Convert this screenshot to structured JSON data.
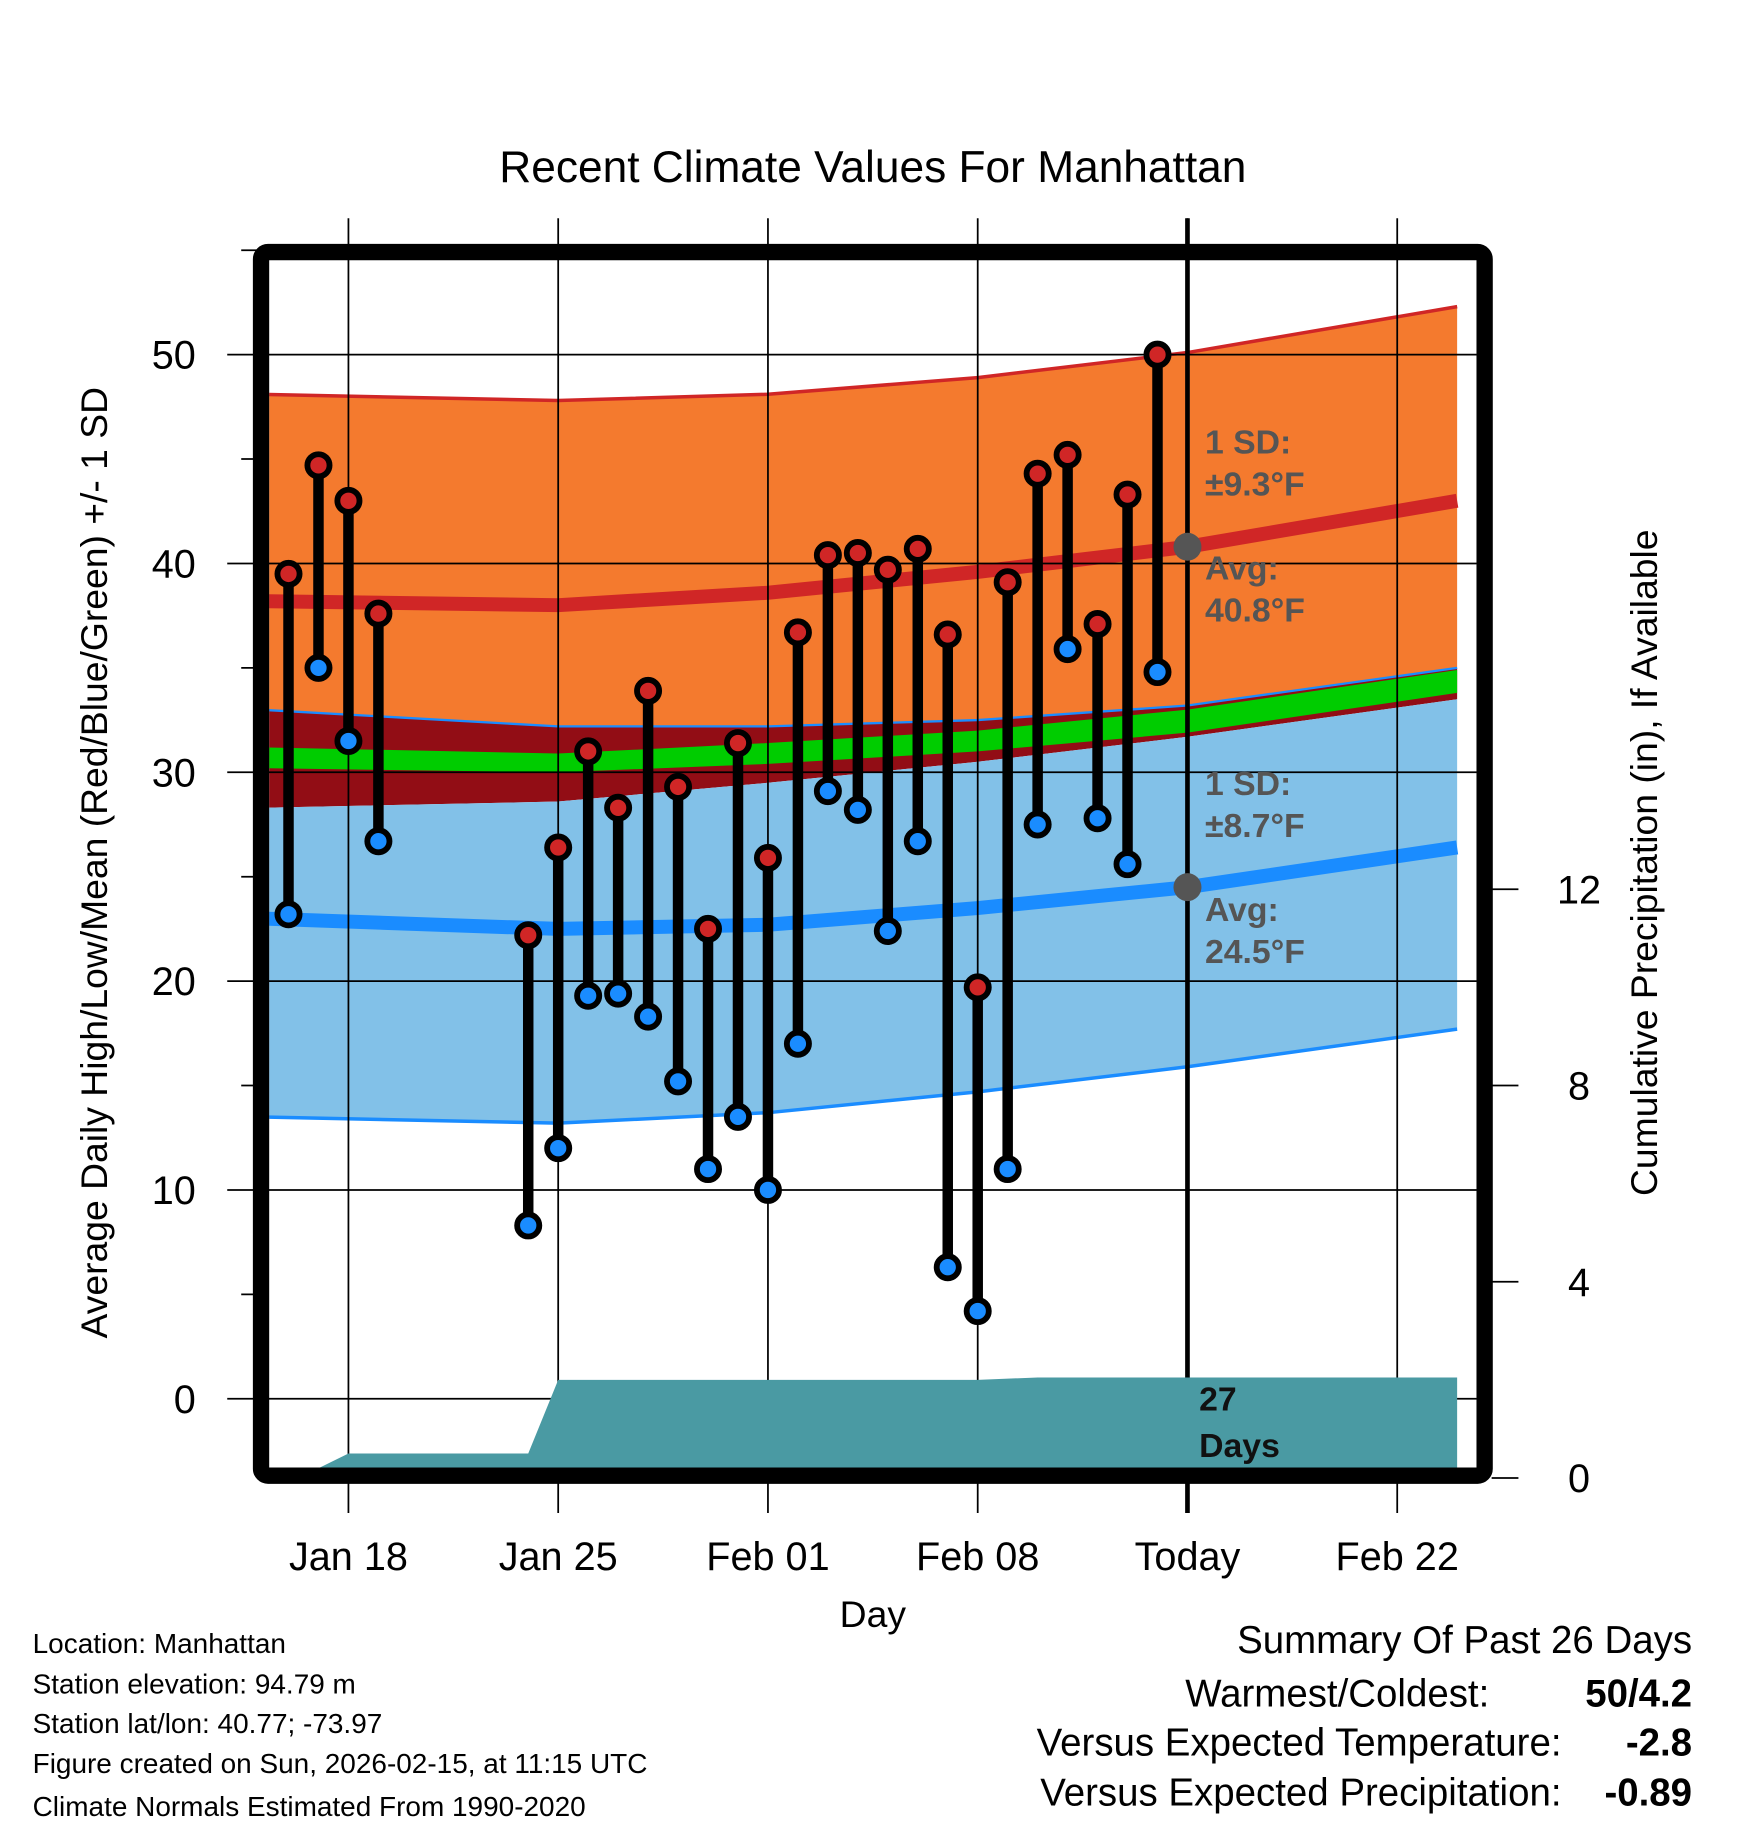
{
  "chart_data": {
    "type": "line",
    "title": "Recent Climate Values For Manhattan",
    "xlabel": "Day",
    "ylabel": "Average Daily High/Low/Mean (Red/Blue/Green) +/- 1 SD",
    "y2label": "Cumulative Precipitation (in), If Available",
    "ylim": [
      -3.3,
      55
    ],
    "y2lim": [
      0,
      20
    ],
    "xlim": [
      "2026-01-15",
      "2026-02-24"
    ],
    "grid": true,
    "yticks": [
      0,
      10,
      20,
      30,
      40,
      50
    ],
    "yticks_minor": [
      5,
      15,
      25,
      35,
      45,
      55
    ],
    "y2ticks": [
      0,
      4,
      8,
      12
    ],
    "xticks": [
      {
        "date": "2026-01-18",
        "label": "Jan 18"
      },
      {
        "date": "2026-01-25",
        "label": "Jan 25"
      },
      {
        "date": "2026-02-01",
        "label": "Feb 01"
      },
      {
        "date": "2026-02-08",
        "label": "Feb 08"
      },
      {
        "date": "2026-02-15",
        "label": "Today"
      },
      {
        "date": "2026-02-22",
        "label": "Feb 22"
      }
    ],
    "today": "2026-02-15",
    "observations": [
      {
        "date": "2026-01-16",
        "high": 39.5,
        "low": 23.2
      },
      {
        "date": "2026-01-17",
        "high": 44.7,
        "low": 35.0
      },
      {
        "date": "2026-01-18",
        "high": 43.0,
        "low": 31.5
      },
      {
        "date": "2026-01-19",
        "high": 37.6,
        "low": 26.7
      },
      {
        "date": "2026-01-24",
        "high": 22.2,
        "low": 8.3
      },
      {
        "date": "2026-01-25",
        "high": 26.4,
        "low": 12.0
      },
      {
        "date": "2026-01-26",
        "high": 31.0,
        "low": 19.3
      },
      {
        "date": "2026-01-27",
        "high": 28.3,
        "low": 19.4
      },
      {
        "date": "2026-01-28",
        "high": 33.9,
        "low": 18.3
      },
      {
        "date": "2026-01-29",
        "high": 29.3,
        "low": 15.2
      },
      {
        "date": "2026-01-30",
        "high": 22.5,
        "low": 11.0
      },
      {
        "date": "2026-01-31",
        "high": 31.4,
        "low": 13.5
      },
      {
        "date": "2026-02-01",
        "high": 25.9,
        "low": 10.0
      },
      {
        "date": "2026-02-02",
        "high": 36.7,
        "low": 17.0
      },
      {
        "date": "2026-02-03",
        "high": 40.4,
        "low": 29.1
      },
      {
        "date": "2026-02-04",
        "high": 40.5,
        "low": 28.2
      },
      {
        "date": "2026-02-05",
        "high": 39.7,
        "low": 22.4
      },
      {
        "date": "2026-02-06",
        "high": 40.7,
        "low": 26.7
      },
      {
        "date": "2026-02-07",
        "high": 36.6,
        "low": 6.3
      },
      {
        "date": "2026-02-08",
        "high": 19.7,
        "low": 4.2
      },
      {
        "date": "2026-02-09",
        "high": 39.1,
        "low": 11.0
      },
      {
        "date": "2026-02-10",
        "high": 44.3,
        "low": 27.5
      },
      {
        "date": "2026-02-11",
        "high": 45.2,
        "low": 35.9
      },
      {
        "date": "2026-02-12",
        "high": 37.1,
        "low": 27.8
      },
      {
        "date": "2026-02-13",
        "high": 43.3,
        "low": 25.6
      },
      {
        "date": "2026-02-14",
        "high": 50.0,
        "low": 34.8
      }
    ],
    "normals": {
      "dates": [
        "2026-01-15",
        "2026-01-25",
        "2026-02-01",
        "2026-02-08",
        "2026-02-15",
        "2026-02-24"
      ],
      "high_upper": [
        48.1,
        47.8,
        48.1,
        48.9,
        50.1,
        52.3
      ],
      "high_mean": [
        38.2,
        38.0,
        38.6,
        39.6,
        40.8,
        43.0
      ],
      "high_lower": [
        33.0,
        32.2,
        32.2,
        32.5,
        33.2,
        35.0
      ],
      "mean_upper": [
        31.2,
        30.9,
        31.4,
        32.0,
        33.0,
        34.9
      ],
      "mean_lower": [
        30.2,
        30.0,
        30.4,
        31.0,
        31.9,
        33.8
      ],
      "low_upper": [
        28.3,
        28.6,
        29.5,
        30.5,
        31.7,
        33.5
      ],
      "low_mean": [
        23.0,
        22.5,
        22.7,
        23.5,
        24.5,
        26.4
      ],
      "low_lower": [
        13.5,
        13.2,
        13.7,
        14.7,
        15.9,
        17.7
      ]
    },
    "precipitation": {
      "dates": [
        "2026-01-16",
        "2026-01-17",
        "2026-01-18",
        "2026-01-24",
        "2026-01-25",
        "2026-02-08",
        "2026-02-10",
        "2026-02-24"
      ],
      "cumulative": [
        0.2,
        0.2,
        0.5,
        0.5,
        2.0,
        2.0,
        2.05,
        2.05
      ]
    },
    "annotations": {
      "high_sd": "1 SD:",
      "high_sd_value": "±9.3°F",
      "high_avg": "Avg:",
      "high_avg_value": "40.8°F",
      "low_sd": "1 SD:",
      "low_sd_value": "±8.7°F",
      "low_avg": "Avg:",
      "low_avg_value": "24.5°F",
      "days_count": "27",
      "days_label": "Days",
      "high_avg_today": 40.8,
      "low_avg_today": 24.5
    },
    "colors": {
      "high_band": "#f47a2e",
      "overlap_band": "#920d15",
      "mean_band": "#00cc00",
      "low_band": "#82c1e8",
      "high_line": "#d02626",
      "low_line": "#1a8cff",
      "precip": "#4a9aa3",
      "high_dot": "#d02626",
      "low_dot": "#1a8cff"
    }
  },
  "footer": {
    "location": "Location: Manhattan",
    "elevation": "Station elevation: 94.79 m",
    "latlon": "Station lat/lon: 40.77; -73.97",
    "created": "Figure created on Sun, 2026-02-15, at 11:15 UTC",
    "normals": "Climate Normals Estimated From 1990-2020"
  },
  "summary": {
    "title": "Summary Of Past 26 Days",
    "warm_cold_label": "Warmest/Coldest:",
    "warm_cold_value": "50/4.2",
    "temp_label": "Versus Expected Temperature:",
    "temp_value": "-2.8",
    "temp_color": "#1a8cff",
    "precip_label": "Versus Expected Precipitation:",
    "precip_value": "-0.89",
    "precip_color": "#a0522d"
  }
}
